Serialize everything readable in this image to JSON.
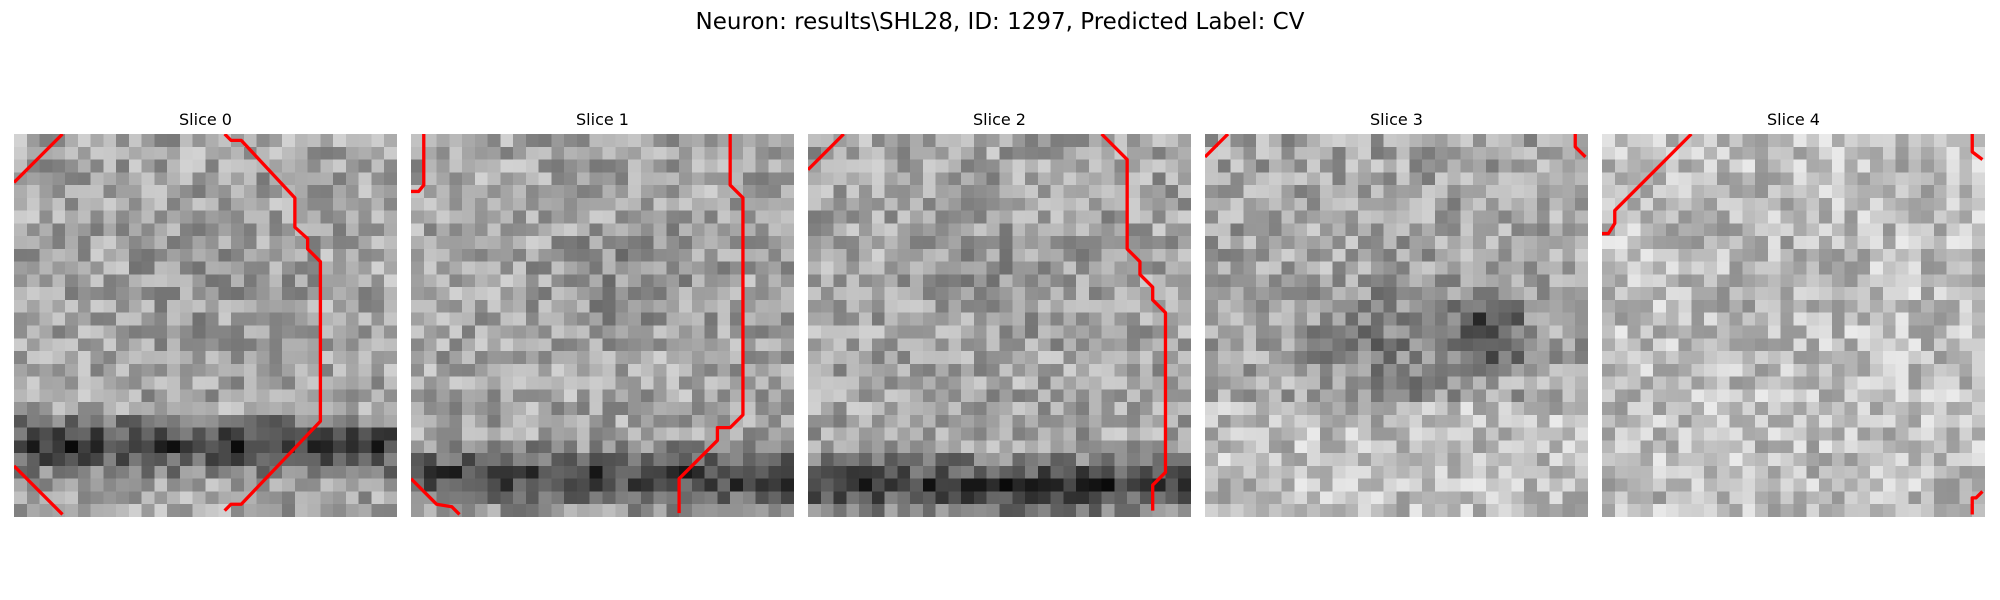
{
  "figure": {
    "title": "Neuron: results\\SHL28, ID: 1297, Predicted Label: CV"
  },
  "slices": [
    {
      "title": "Slice 0",
      "dark_band": 0.8,
      "dark_blob": 0.18,
      "seed": 11
    },
    {
      "title": "Slice 1",
      "dark_band": 0.88,
      "dark_blob": 0.3,
      "seed": 23
    },
    {
      "title": "Slice 2",
      "dark_band": 0.9,
      "dark_blob": 0.22,
      "seed": 37
    },
    {
      "title": "Slice 3",
      "dark_band": 0.0,
      "dark_blob": 0.55,
      "seed": 41
    },
    {
      "title": "Slice 4",
      "dark_band": 0.0,
      "dark_blob": 0.15,
      "seed": 53
    }
  ],
  "colors": {
    "contour": "#ff0000"
  }
}
